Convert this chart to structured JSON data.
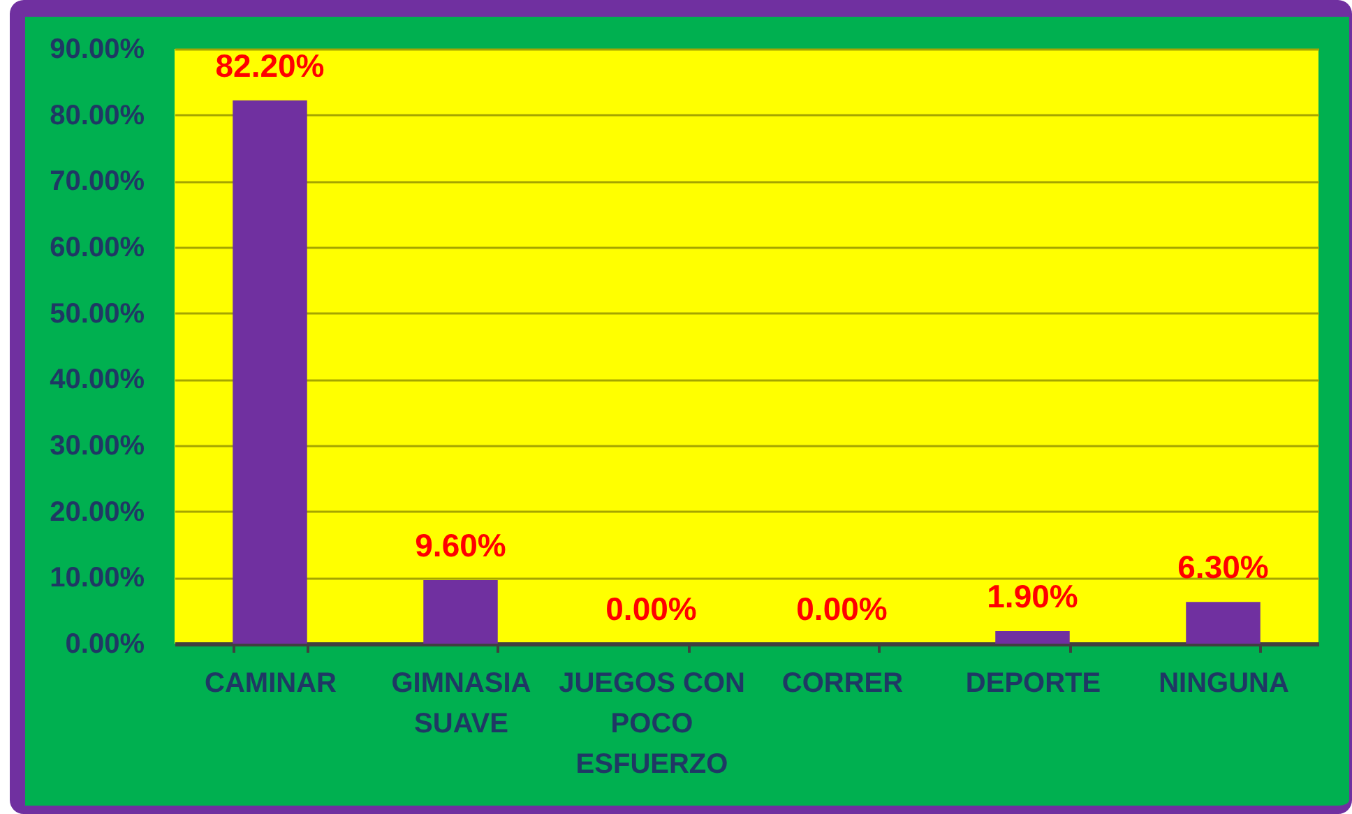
{
  "chart_data": {
    "type": "bar",
    "categories": [
      "CAMINAR",
      "GIMNASIA SUAVE",
      "JUEGOS CON POCO ESFUERZO",
      "CORRER",
      "DEPORTE",
      "NINGUNA"
    ],
    "values": [
      82.2,
      9.6,
      0,
      0,
      1.9,
      6.3
    ],
    "color": "#7030a0",
    "value_labels": [
      "82.20%",
      "9.60%",
      "0.00%",
      "0.00%",
      "1.90%",
      "6.30%"
    ],
    "ylim": [
      0,
      90
    ],
    "yticks": [
      {
        "value": 0,
        "label": "0.00%"
      },
      {
        "value": 10,
        "label": "10.00%"
      },
      {
        "value": 20,
        "label": "20.00%"
      },
      {
        "value": 30,
        "label": "30.00%"
      },
      {
        "value": 40,
        "label": "40.00%"
      },
      {
        "value": 50,
        "label": "50.00%"
      },
      {
        "value": 60,
        "label": "60.00%"
      },
      {
        "value": 70,
        "label": "70.00%"
      },
      {
        "value": 80,
        "label": "80.00%"
      },
      {
        "value": 90,
        "label": "90.00%"
      }
    ],
    "grid": "y"
  }
}
